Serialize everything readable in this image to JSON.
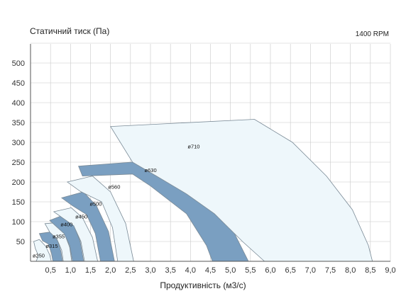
{
  "chart_data": {
    "type": "area",
    "ylabel": "Статичний тиск (Па)",
    "xlabel": "Продуктивність (м3/с)",
    "annotation": "1400 RPM",
    "xlim": [
      0,
      9.0
    ],
    "ylim": [
      0,
      550
    ],
    "x_ticks": [
      "0,5",
      "1,0",
      "1,5",
      "2,0",
      "2,5",
      "3,0",
      "3,5",
      "4,0",
      "4,5",
      "5,0",
      "5,5",
      "6,0",
      "6,5",
      "7,0",
      "7,5",
      "8,0",
      "8,5",
      "9,0"
    ],
    "y_ticks": [
      "50",
      "100",
      "150",
      "200",
      "250",
      "300",
      "350",
      "400",
      "450",
      "500"
    ],
    "grid": true,
    "colors": {
      "filled": "#7a9fc1",
      "light": "#eef7fb",
      "outline": "#7a8a96",
      "grid": "#c8c8c8"
    },
    "series": [
      {
        "name": "ø250",
        "style": "light",
        "polygon": [
          [
            0.08,
            50
          ],
          [
            0.22,
            55
          ],
          [
            0.38,
            38
          ],
          [
            0.48,
            16
          ],
          [
            0.52,
            0
          ],
          [
            0.14,
            0
          ],
          [
            0.2,
            14
          ],
          [
            0.12,
            32
          ]
        ],
        "label_at": [
          0.05,
          10
        ]
      },
      {
        "name": "ø315",
        "style": "filled",
        "polygon": [
          [
            0.22,
            70
          ],
          [
            0.5,
            74
          ],
          [
            0.68,
            52
          ],
          [
            0.76,
            25
          ],
          [
            0.8,
            0
          ],
          [
            0.56,
            0
          ],
          [
            0.52,
            22
          ],
          [
            0.44,
            44
          ],
          [
            0.3,
            52
          ]
        ],
        "label_at": [
          0.38,
          34
        ]
      },
      {
        "name": "ø355",
        "style": "light",
        "polygon": [
          [
            0.36,
            95
          ],
          [
            0.62,
            97
          ],
          [
            0.85,
            70
          ],
          [
            0.98,
            35
          ],
          [
            1.03,
            0
          ],
          [
            0.82,
            0
          ],
          [
            0.78,
            28
          ],
          [
            0.66,
            56
          ],
          [
            0.48,
            74
          ]
        ],
        "label_at": [
          0.55,
          58
        ]
      },
      {
        "name": "ø400",
        "style": "filled",
        "polygon": [
          [
            0.48,
            103
          ],
          [
            0.86,
            118
          ],
          [
            1.08,
            92
          ],
          [
            1.24,
            50
          ],
          [
            1.33,
            0
          ],
          [
            1.05,
            0
          ],
          [
            0.98,
            40
          ],
          [
            0.84,
            70
          ],
          [
            0.64,
            88
          ]
        ],
        "label_at": [
          0.75,
          88
        ]
      },
      {
        "name": "ø450",
        "style": "light",
        "polygon": [
          [
            0.58,
            125
          ],
          [
            1.02,
            135
          ],
          [
            1.3,
            110
          ],
          [
            1.55,
            60
          ],
          [
            1.68,
            0
          ],
          [
            1.35,
            0
          ],
          [
            1.26,
            50
          ],
          [
            1.08,
            90
          ],
          [
            0.82,
            108
          ]
        ],
        "label_at": [
          1.12,
          108
        ]
      },
      {
        "name": "ø500",
        "style": "filled",
        "polygon": [
          [
            0.78,
            160
          ],
          [
            1.32,
            175
          ],
          [
            1.65,
            140
          ],
          [
            1.95,
            75
          ],
          [
            2.1,
            0
          ],
          [
            1.75,
            0
          ],
          [
            1.62,
            70
          ],
          [
            1.4,
            118
          ],
          [
            1.05,
            140
          ]
        ],
        "label_at": [
          1.48,
          140
        ]
      },
      {
        "name": "ø560",
        "style": "light",
        "polygon": [
          [
            0.92,
            200
          ],
          [
            1.55,
            215
          ],
          [
            2.0,
            175
          ],
          [
            2.38,
            95
          ],
          [
            2.58,
            0
          ],
          [
            2.18,
            0
          ],
          [
            2.05,
            85
          ],
          [
            1.78,
            150
          ],
          [
            1.25,
            176
          ]
        ],
        "label_at": [
          1.94,
          183
        ]
      },
      {
        "name": "ø630",
        "style": "filled",
        "polygon": [
          [
            1.2,
            240
          ],
          [
            3.6,
            258
          ],
          [
            4.25,
            200
          ],
          [
            4.95,
            100
          ],
          [
            5.35,
            20
          ],
          [
            5.45,
            0
          ],
          [
            4.55,
            0
          ],
          [
            4.4,
            40
          ],
          [
            3.9,
            120
          ],
          [
            3.0,
            190
          ],
          [
            2.55,
            220
          ],
          [
            1.3,
            215
          ]
        ],
        "label_at": [
          2.85,
          225
        ]
      },
      {
        "name": "ø710",
        "style": "light",
        "polygon": [
          [
            2.0,
            340
          ],
          [
            5.6,
            358
          ],
          [
            6.55,
            300
          ],
          [
            7.4,
            215
          ],
          [
            8.05,
            130
          ],
          [
            8.45,
            40
          ],
          [
            8.55,
            0
          ],
          [
            5.85,
            0
          ],
          [
            5.3,
            50
          ],
          [
            4.6,
            120
          ],
          [
            3.9,
            170
          ],
          [
            3.15,
            215
          ],
          [
            2.55,
            250
          ]
        ],
        "label_at": [
          3.93,
          285
        ]
      }
    ]
  }
}
